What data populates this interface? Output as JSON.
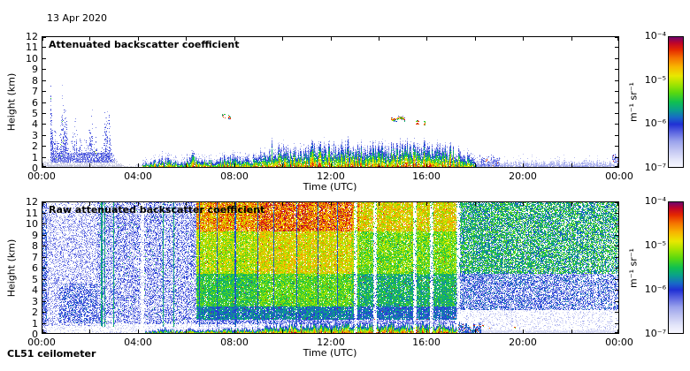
{
  "figure": {
    "date_label": "13 Apr 2020",
    "footer_label": "CL51 ceilometer",
    "background_color": "#ffffff",
    "text_color": "#000000"
  },
  "colormap_stops": [
    [
      0.0,
      "#f8f8ff"
    ],
    [
      0.06,
      "#e4e6fa"
    ],
    [
      0.13,
      "#c2c6f2"
    ],
    [
      0.2,
      "#9aa2ec"
    ],
    [
      0.27,
      "#5a64e0"
    ],
    [
      0.33,
      "#2030d4"
    ],
    [
      0.38,
      "#1868c8"
    ],
    [
      0.44,
      "#0aa08c"
    ],
    [
      0.5,
      "#10c050"
    ],
    [
      0.57,
      "#58d810"
    ],
    [
      0.64,
      "#a8e400"
    ],
    [
      0.7,
      "#e8e800"
    ],
    [
      0.77,
      "#f8b400"
    ],
    [
      0.84,
      "#f47000"
    ],
    [
      0.9,
      "#e42800"
    ],
    [
      0.95,
      "#c00428"
    ],
    [
      1.0,
      "#6a0572"
    ]
  ],
  "chart_data": [
    {
      "type": "heatmap",
      "title": "Attenuated backscatter coefficient",
      "xlabel": "Time (UTC)",
      "ylabel": "Height (km)",
      "x_range_hours": [
        0,
        24
      ],
      "x_tick_hours": [
        0,
        4,
        8,
        12,
        16,
        20,
        24
      ],
      "x_tick_labels": [
        "00:00",
        "04:00",
        "08:00",
        "12:00",
        "16:00",
        "20:00",
        "00:00"
      ],
      "x_minor_tick_step_hours": 2,
      "ylim_km": [
        0,
        12
      ],
      "y_tick_labels": [
        "0",
        "1",
        "2",
        "3",
        "4",
        "5",
        "6",
        "7",
        "8",
        "9",
        "10",
        "11",
        "12"
      ],
      "grid": false,
      "colorbar": {
        "position": "right",
        "scale": "log",
        "min": "1e-7",
        "max": "1e-4",
        "tick_labels": [
          "10⁻⁴",
          "10⁻⁵",
          "10⁻⁶",
          "10⁻⁷"
        ],
        "unit_label": "m⁻¹ sr⁻¹"
      },
      "features": {
        "surface_gray_layer": {
          "t_hours": [
            0,
            3.5
          ],
          "top_km": 0.85
        },
        "precip_virga_towers": {
          "t_hours": [
            0.35,
            2.95
          ],
          "count": 13,
          "top_km_range": [
            2.6,
            6.8
          ]
        },
        "boundary_layer_profile_t_km": [
          [
            4.2,
            0.35
          ],
          [
            4.6,
            0.55
          ],
          [
            5.0,
            0.95
          ],
          [
            5.4,
            0.7
          ],
          [
            6.0,
            0.6
          ],
          [
            6.3,
            1.15
          ],
          [
            6.6,
            0.7
          ],
          [
            7.2,
            0.75
          ],
          [
            8.0,
            1.0
          ],
          [
            8.6,
            0.9
          ],
          [
            9.3,
            1.35
          ],
          [
            10.0,
            1.7
          ],
          [
            10.7,
            1.5
          ],
          [
            11.3,
            2.05
          ],
          [
            12.0,
            1.85
          ],
          [
            12.7,
            2.1
          ],
          [
            13.4,
            1.8
          ],
          [
            14.0,
            2.0
          ],
          [
            14.7,
            1.85
          ],
          [
            15.4,
            2.1
          ],
          [
            16.0,
            1.8
          ],
          [
            16.6,
            1.9
          ],
          [
            17.2,
            1.5
          ],
          [
            17.7,
            1.05
          ],
          [
            18.1,
            0.6
          ]
        ],
        "evening_shallow_layer": {
          "t_hours": [
            18.1,
            24
          ],
          "top_km": 0.45
        },
        "cloud_marks": [
          {
            "t": 7.55,
            "km": 4.75,
            "w": 0.08,
            "kind": "specks"
          },
          {
            "t": 7.78,
            "km": 4.7,
            "w": 0.07,
            "kind": "specks"
          },
          {
            "t": 14.8,
            "km": 4.55,
            "w": 0.55,
            "kind": "streak"
          },
          {
            "t": 15.6,
            "km": 4.2,
            "w": 0.08,
            "kind": "specks"
          },
          {
            "t": 15.9,
            "km": 4.1,
            "w": 0.06,
            "kind": "specks"
          },
          {
            "t": 18.6,
            "km": 0.95,
            "w": 0.8,
            "kind": "patch"
          },
          {
            "t": 23.82,
            "km": 1.2,
            "w": 0.22,
            "kind": "patch"
          }
        ]
      }
    },
    {
      "type": "heatmap",
      "title": "Raw attenuated backscatter coefficient",
      "xlabel": "Time (UTC)",
      "ylabel": "Height (km)",
      "x_range_hours": [
        0,
        24
      ],
      "x_tick_hours": [
        0,
        4,
        8,
        12,
        16,
        20,
        24
      ],
      "x_tick_labels": [
        "00:00",
        "04:00",
        "08:00",
        "12:00",
        "16:00",
        "20:00",
        "00:00"
      ],
      "x_minor_tick_step_hours": 2,
      "ylim_km": [
        0,
        12
      ],
      "y_tick_labels": [
        "0",
        "1",
        "2",
        "3",
        "4",
        "5",
        "6",
        "7",
        "8",
        "9",
        "10",
        "11",
        "12"
      ],
      "grid": false,
      "colorbar": {
        "position": "right",
        "scale": "log",
        "min": "1e-7",
        "max": "1e-4",
        "tick_labels": [
          "10⁻⁴",
          "10⁻⁵",
          "10⁻⁶",
          "10⁻⁷"
        ],
        "unit_label": "m⁻¹ sr⁻¹"
      },
      "features": {
        "noise_epochs": [
          {
            "t_hours": [
              0,
              2.3
            ],
            "style": "night_sparse_blue"
          },
          {
            "t_hours": [
              2.3,
              6.45
            ],
            "style": "night_blue"
          },
          {
            "t_hours": [
              6.45,
              13.2
            ],
            "style": "day_hot"
          },
          {
            "t_hours": [
              13.2,
              17.3
            ],
            "style": "day_warm"
          },
          {
            "t_hours": [
              17.3,
              24
            ],
            "style": "evening_green"
          }
        ],
        "light_gap_streaks_t": [
          4.2,
          13.05,
          13.85,
          15.5,
          16.2,
          17.3
        ],
        "dark_vertical_lines_t": [
          2.5,
          2.62,
          3.0,
          5.05,
          5.5,
          6.55,
          7.3,
          8.05,
          9.0,
          9.65,
          10.6,
          11.5,
          12.3
        ],
        "surface_aerosol_band_t": [
          4.3,
          17.3
        ],
        "low_dark_patch_t": [
          17.3,
          18.25
        ]
      }
    }
  ]
}
